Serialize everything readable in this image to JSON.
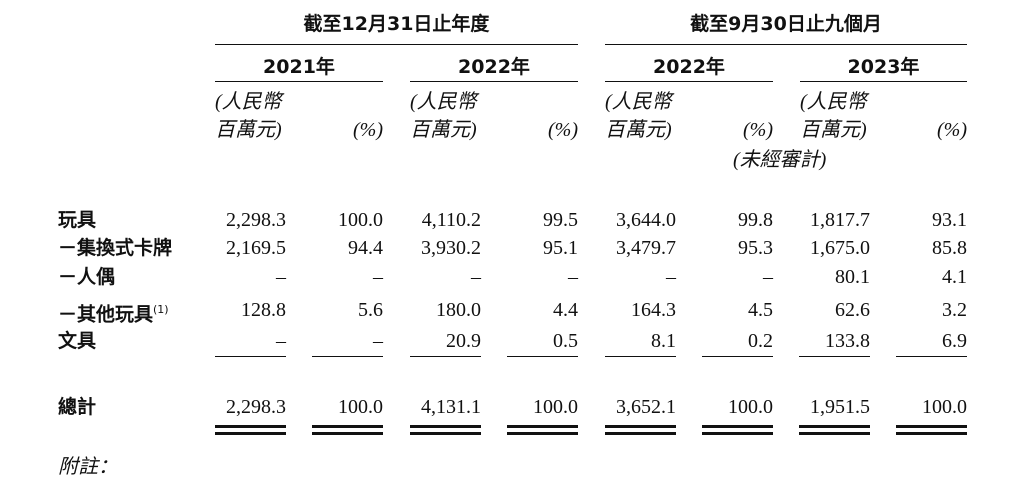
{
  "table": {
    "group_headers": [
      "截至12月31日止年度",
      "截至9月30日止九個月"
    ],
    "year_headers": [
      "2021年",
      "2022年",
      "2022年",
      "2023年"
    ],
    "amount_unit": [
      "(人民幣",
      "百萬元)"
    ],
    "percent_unit": "(%)",
    "unaudited": "(未經審計)",
    "rows": [
      {
        "label": "玩具",
        "values": [
          "2,298.3",
          "100.0",
          "4,110.2",
          "99.5",
          "3,644.0",
          "99.8",
          "1,817.7",
          "93.1"
        ]
      },
      {
        "label": "－集換式卡牌",
        "values": [
          "2,169.5",
          "94.4",
          "3,930.2",
          "95.1",
          "3,479.7",
          "95.3",
          "1,675.0",
          "85.8"
        ]
      },
      {
        "label": "－人偶",
        "values": [
          "–",
          "–",
          "–",
          "–",
          "–",
          "–",
          "80.1",
          "4.1"
        ]
      },
      {
        "label": "－其他玩具",
        "note": "(1)",
        "values": [
          "128.8",
          "5.6",
          "180.0",
          "4.4",
          "164.3",
          "4.5",
          "62.6",
          "3.2"
        ]
      },
      {
        "label": "文具",
        "values": [
          "–",
          "–",
          "20.9",
          "0.5",
          "8.1",
          "0.2",
          "133.8",
          "6.9"
        ]
      }
    ],
    "total": {
      "label": "總計",
      "values": [
        "2,298.3",
        "100.0",
        "4,131.1",
        "100.0",
        "3,652.1",
        "100.0",
        "1,951.5",
        "100.0"
      ]
    },
    "footnote": "附註："
  }
}
